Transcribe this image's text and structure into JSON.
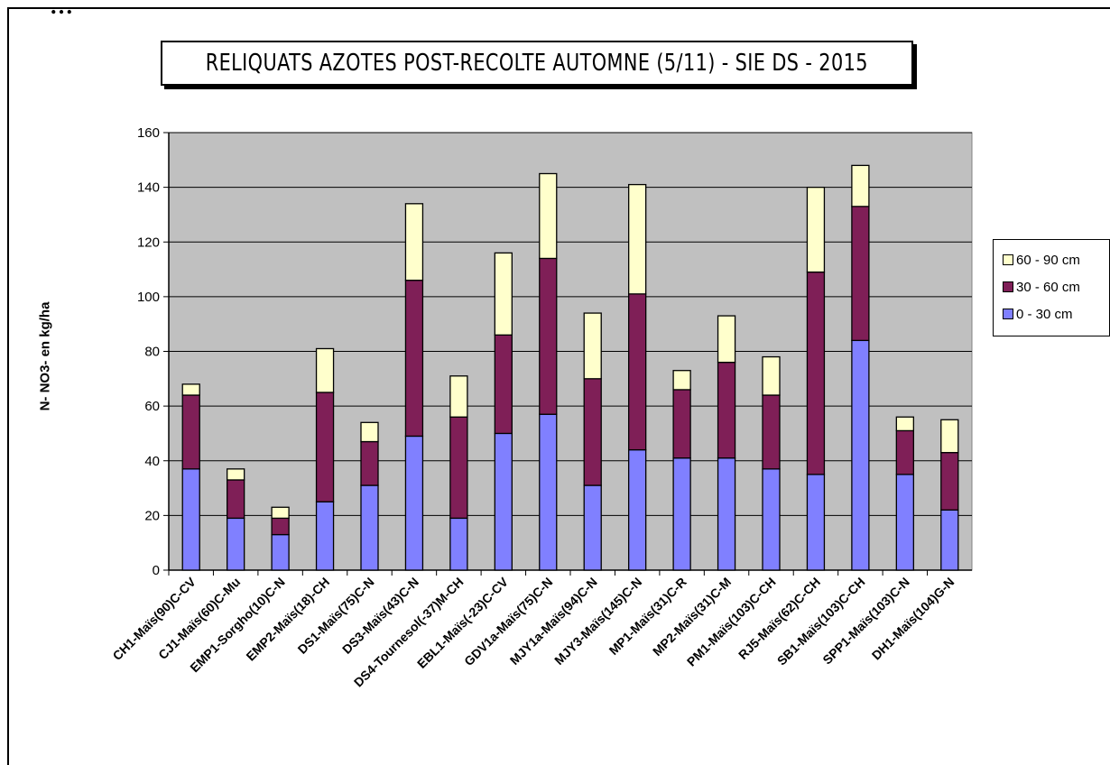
{
  "header_text": "…",
  "chart_data": {
    "type": "bar",
    "stacked": true,
    "title": "RELIQUATS AZOTES POST-RECOLTE AUTOMNE (5/11) - SIE DS - 2015",
    "ylabel": "N- NO3- en kg/ha",
    "xlabel": "",
    "ylim": [
      0,
      160
    ],
    "yticks": [
      0,
      20,
      40,
      60,
      80,
      100,
      120,
      140,
      160
    ],
    "grid": true,
    "legend_position": "right",
    "categories": [
      "CH1-Maïs(90)C-CV",
      "CJ1-Maïs(60)C-Mu",
      "EMP1-Sorgho(10)C-N",
      "EMP2-Maïs(18)-CH",
      "DS1-Maïs(75)C-N",
      "DS3-Maïs(43)C-N",
      "DS4-Tournesol(-37)M-CH",
      "EBL1-Maïs(-23)C-CV",
      "GDV1a-Maïs(75)C-N",
      "MJY1a-Maïs(94)C-N",
      "MJY3-Maïs(145)C-N",
      "MP1-Maïs(31)C-R",
      "MP2-Maïs(31)C-M",
      "PM1-Maïs(103)C-CH",
      "RJ5-Maïs(62)C-CH",
      "SB1-Maïs(103)C-CH",
      "SPP1-Maïs(103)C-N",
      "DH1-Maïs(104)G-N"
    ],
    "series": [
      {
        "name": "0 - 30 cm",
        "color": "#8080ff",
        "values": [
          37,
          19,
          13,
          25,
          31,
          49,
          19,
          50,
          57,
          31,
          44,
          41,
          41,
          37,
          35,
          84,
          35,
          22
        ]
      },
      {
        "name": "30 - 60 cm",
        "color": "#7f1f57",
        "values": [
          27,
          14,
          6,
          40,
          16,
          57,
          37,
          36,
          57,
          39,
          57,
          25,
          35,
          27,
          74,
          49,
          16,
          21
        ]
      },
      {
        "name": "60 - 90 cm",
        "color": "#ffffcc",
        "values": [
          4,
          4,
          4,
          16,
          7,
          28,
          15,
          30,
          31,
          24,
          40,
          7,
          17,
          14,
          31,
          15,
          5,
          12
        ]
      }
    ],
    "legend_order": [
      "60 - 90 cm",
      "30 - 60 cm",
      "0 - 30 cm"
    ],
    "plot_background": "#c0c0c0"
  }
}
